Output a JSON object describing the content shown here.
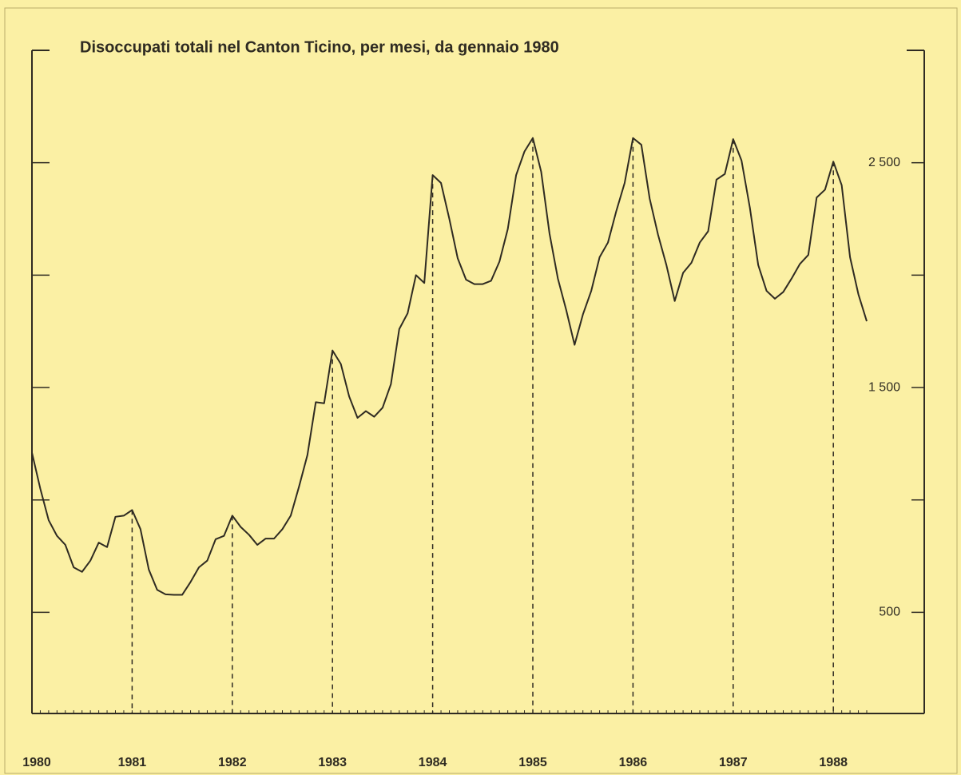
{
  "chart_data": {
    "type": "line",
    "title": "Disoccupati totali nel Canton Ticino, per mesi, da gennaio 1980",
    "categories": [
      "1980",
      null,
      null,
      null,
      null,
      null,
      null,
      null,
      null,
      null,
      null,
      null,
      "1981",
      null,
      null,
      null,
      null,
      null,
      null,
      null,
      null,
      null,
      null,
      null,
      "1982",
      null,
      null,
      null,
      null,
      null,
      null,
      null,
      null,
      null,
      null,
      null,
      "1983",
      null,
      null,
      null,
      null,
      null,
      null,
      null,
      null,
      null,
      null,
      null,
      "1984",
      null,
      null,
      null,
      null,
      null,
      null,
      null,
      null,
      null,
      null,
      null,
      "1985",
      null,
      null,
      null,
      null,
      null,
      null,
      null,
      null,
      null,
      null,
      null,
      "1986",
      null,
      null,
      null,
      null,
      null,
      null,
      null,
      null,
      null,
      null,
      null,
      "1987",
      null,
      null,
      null,
      null,
      null,
      null,
      null,
      null,
      null,
      null,
      null,
      "1988",
      null,
      null,
      null,
      null
    ],
    "series": [
      {
        "color": "#2f2b22",
        "values": [
          1210,
          1050,
          910,
          840,
          800,
          700,
          680,
          730,
          810,
          790,
          925,
          930,
          955,
          870,
          690,
          600,
          580,
          578,
          578,
          635,
          700,
          730,
          825,
          840,
          930,
          880,
          845,
          800,
          828,
          828,
          870,
          930,
          1060,
          1200,
          1435,
          1430,
          1665,
          1605,
          1460,
          1365,
          1395,
          1370,
          1410,
          1515,
          1760,
          1830,
          2000,
          1965,
          2445,
          2410,
          2250,
          2075,
          1980,
          1960,
          1960,
          1975,
          2060,
          2205,
          2445,
          2550,
          2610,
          2460,
          2185,
          1985,
          1845,
          1690,
          1825,
          1930,
          2080,
          2145,
          2285,
          2410,
          2610,
          2580,
          2340,
          2180,
          2045,
          1885,
          2010,
          2055,
          2145,
          2195,
          2425,
          2450,
          2605,
          2510,
          2300,
          2045,
          1930,
          1895,
          1925,
          1985,
          2050,
          2090,
          2345,
          2380,
          2505,
          2400,
          2080,
          1915,
          1795
        ]
      }
    ],
    "ylim": [
      50,
      3000
    ],
    "yticks": [
      500,
      {
        "value": 1500,
        "label": "1 500"
      },
      {
        "value": 2500,
        "label": "2 500"
      }
    ],
    "yminor_ticks": [
      1000,
      2000,
      3000
    ]
  }
}
